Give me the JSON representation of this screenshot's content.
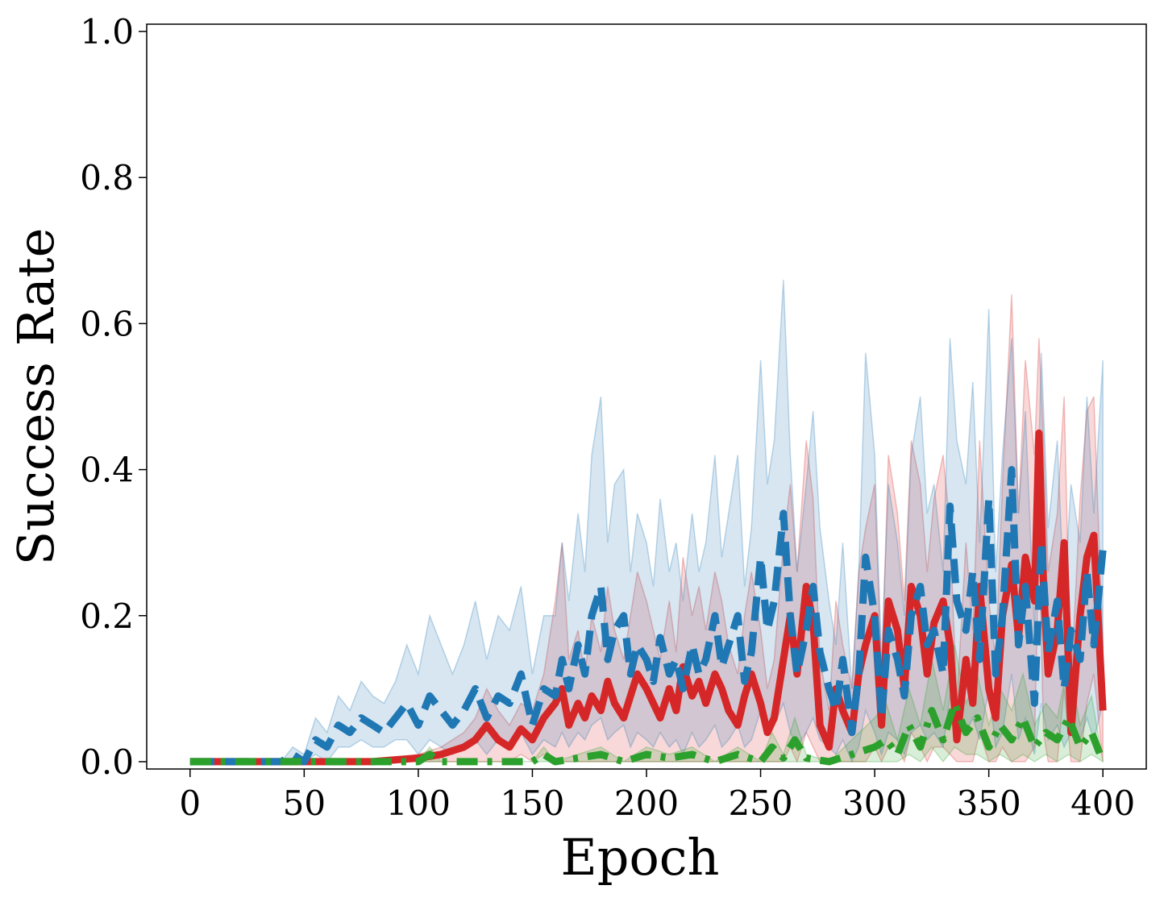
{
  "chart_data": {
    "type": "line",
    "title": "",
    "xlabel": "Epoch",
    "ylabel": "Success Rate",
    "xlim": [
      -19,
      419
    ],
    "ylim": [
      -0.01,
      1.01
    ],
    "xticks": [
      0,
      50,
      100,
      150,
      200,
      250,
      300,
      350,
      400
    ],
    "yticks": [
      0.0,
      0.2,
      0.4,
      0.6,
      0.8,
      1.0
    ],
    "xtick_labels": [
      "0",
      "50",
      "100",
      "150",
      "200",
      "250",
      "300",
      "350",
      "400"
    ],
    "ytick_labels": [
      "0.0",
      "0.2",
      "0.4",
      "0.6",
      "0.8",
      "1.0"
    ],
    "grid": false,
    "legend": "none",
    "series": [
      {
        "color": "#d62728",
        "line_style": "solid",
        "x": [
          0,
          20,
          40,
          60,
          80,
          100,
          110,
          120,
          125,
          130,
          135,
          140,
          145,
          150,
          155,
          160,
          163,
          166,
          170,
          173,
          176,
          180,
          183,
          186,
          190,
          193,
          196,
          200,
          203,
          206,
          210,
          213,
          216,
          220,
          223,
          226,
          230,
          233,
          236,
          240,
          243,
          246,
          250,
          253,
          256,
          260,
          263,
          266,
          270,
          273,
          276,
          280,
          283,
          286,
          290,
          293,
          296,
          300,
          303,
          306,
          310,
          313,
          316,
          320,
          323,
          326,
          330,
          333,
          336,
          340,
          343,
          346,
          350,
          353,
          356,
          360,
          363,
          366,
          370,
          372,
          374,
          376,
          380,
          383,
          386,
          390,
          393,
          396,
          400
        ],
        "mean": [
          0,
          0,
          0,
          0,
          0,
          0.005,
          0.01,
          0.02,
          0.03,
          0.05,
          0.03,
          0.02,
          0.045,
          0.03,
          0.06,
          0.08,
          0.1,
          0.05,
          0.08,
          0.06,
          0.09,
          0.07,
          0.11,
          0.08,
          0.06,
          0.09,
          0.12,
          0.1,
          0.08,
          0.06,
          0.1,
          0.07,
          0.13,
          0.09,
          0.11,
          0.08,
          0.12,
          0.1,
          0.07,
          0.05,
          0.09,
          0.12,
          0.08,
          0.04,
          0.06,
          0.14,
          0.2,
          0.12,
          0.24,
          0.19,
          0.05,
          0.02,
          0.1,
          0.07,
          0.04,
          0.12,
          0.16,
          0.2,
          0.05,
          0.22,
          0.18,
          0.1,
          0.24,
          0.2,
          0.12,
          0.19,
          0.22,
          0.16,
          0.03,
          0.14,
          0.08,
          0.24,
          0.1,
          0.06,
          0.2,
          0.27,
          0.17,
          0.28,
          0.22,
          0.45,
          0.24,
          0.12,
          0.18,
          0.3,
          0.04,
          0.2,
          0.28,
          0.31,
          0.07
        ],
        "upper": [
          0,
          0,
          0,
          0,
          0,
          0.01,
          0.02,
          0.04,
          0.06,
          0.1,
          0.07,
          0.05,
          0.08,
          0.07,
          0.12,
          0.22,
          0.3,
          0.14,
          0.18,
          0.12,
          0.2,
          0.15,
          0.24,
          0.18,
          0.14,
          0.2,
          0.26,
          0.22,
          0.18,
          0.14,
          0.22,
          0.15,
          0.28,
          0.2,
          0.24,
          0.18,
          0.26,
          0.22,
          0.16,
          0.12,
          0.2,
          0.26,
          0.18,
          0.1,
          0.14,
          0.3,
          0.38,
          0.26,
          0.44,
          0.36,
          0.14,
          0.07,
          0.22,
          0.16,
          0.1,
          0.26,
          0.32,
          0.38,
          0.12,
          0.42,
          0.34,
          0.22,
          0.44,
          0.38,
          0.26,
          0.36,
          0.42,
          0.32,
          0.08,
          0.3,
          0.18,
          0.44,
          0.22,
          0.14,
          0.38,
          0.64,
          0.34,
          0.55,
          0.42,
          0.58,
          0.44,
          0.26,
          0.34,
          0.5,
          0.1,
          0.36,
          0.48,
          0.5,
          0.16
        ],
        "lower": [
          0,
          0,
          0,
          0,
          0,
          0,
          0,
          0,
          0,
          0,
          0,
          0,
          0.01,
          0,
          0.01,
          0,
          0,
          0,
          0,
          0,
          0,
          0,
          0,
          0,
          0,
          0,
          0,
          0,
          0,
          0,
          0,
          0,
          0,
          0,
          0,
          0,
          0,
          0,
          0,
          0,
          0,
          0,
          0,
          0,
          0,
          0,
          0.02,
          0,
          0.04,
          0.02,
          0,
          0,
          0,
          0,
          0,
          0,
          0,
          0.02,
          0,
          0.02,
          0.02,
          0,
          0.04,
          0.02,
          0,
          0.02,
          0.02,
          0.01,
          0,
          0,
          0,
          0.04,
          0,
          0,
          0.02,
          0,
          0,
          0,
          0.02,
          0.3,
          0.04,
          0,
          0,
          0.1,
          0,
          0,
          0.08,
          0.12,
          0
        ]
      },
      {
        "color": "#1f77b4",
        "line_style": "dashed",
        "x": [
          0,
          20,
          40,
          45,
          50,
          55,
          60,
          65,
          70,
          75,
          80,
          85,
          90,
          95,
          100,
          105,
          110,
          115,
          120,
          125,
          130,
          135,
          140,
          145,
          150,
          155,
          160,
          163,
          166,
          170,
          173,
          176,
          180,
          183,
          186,
          190,
          193,
          196,
          200,
          203,
          206,
          210,
          213,
          216,
          220,
          223,
          226,
          230,
          233,
          236,
          240,
          243,
          246,
          250,
          253,
          256,
          260,
          263,
          266,
          270,
          273,
          276,
          280,
          283,
          286,
          290,
          293,
          296,
          300,
          303,
          306,
          310,
          313,
          316,
          320,
          323,
          326,
          330,
          333,
          336,
          340,
          343,
          346,
          350,
          353,
          356,
          360,
          363,
          366,
          370,
          373,
          376,
          380,
          383,
          386,
          390,
          393,
          396,
          400
        ],
        "mean": [
          0,
          0,
          0,
          0.01,
          0,
          0.03,
          0.02,
          0.05,
          0.04,
          0.06,
          0.05,
          0.04,
          0.06,
          0.08,
          0.05,
          0.09,
          0.07,
          0.05,
          0.07,
          0.1,
          0.06,
          0.09,
          0.08,
          0.12,
          0.05,
          0.1,
          0.09,
          0.14,
          0.1,
          0.16,
          0.12,
          0.2,
          0.24,
          0.14,
          0.18,
          0.2,
          0.12,
          0.16,
          0.14,
          0.11,
          0.17,
          0.12,
          0.14,
          0.1,
          0.16,
          0.12,
          0.14,
          0.2,
          0.13,
          0.16,
          0.2,
          0.11,
          0.15,
          0.28,
          0.18,
          0.22,
          0.34,
          0.2,
          0.12,
          0.18,
          0.24,
          0.15,
          0.1,
          0.07,
          0.14,
          0.04,
          0.12,
          0.28,
          0.2,
          0.06,
          0.18,
          0.14,
          0.09,
          0.2,
          0.24,
          0.16,
          0.18,
          0.12,
          0.35,
          0.22,
          0.18,
          0.26,
          0.14,
          0.36,
          0.12,
          0.2,
          0.4,
          0.16,
          0.24,
          0.08,
          0.3,
          0.15,
          0.22,
          0.1,
          0.18,
          0.14,
          0.26,
          0.16,
          0.29
        ],
        "upper": [
          0,
          0,
          0,
          0.02,
          0.01,
          0.06,
          0.04,
          0.09,
          0.07,
          0.11,
          0.09,
          0.08,
          0.11,
          0.16,
          0.12,
          0.2,
          0.16,
          0.12,
          0.16,
          0.22,
          0.14,
          0.2,
          0.18,
          0.24,
          0.12,
          0.2,
          0.2,
          0.3,
          0.22,
          0.34,
          0.26,
          0.42,
          0.5,
          0.3,
          0.38,
          0.4,
          0.26,
          0.34,
          0.3,
          0.24,
          0.36,
          0.26,
          0.3,
          0.22,
          0.34,
          0.26,
          0.3,
          0.42,
          0.28,
          0.34,
          0.42,
          0.24,
          0.32,
          0.55,
          0.38,
          0.44,
          0.66,
          0.42,
          0.26,
          0.38,
          0.48,
          0.32,
          0.22,
          0.16,
          0.3,
          0.1,
          0.26,
          0.56,
          0.42,
          0.14,
          0.38,
          0.3,
          0.2,
          0.42,
          0.5,
          0.34,
          0.38,
          0.26,
          0.58,
          0.44,
          0.38,
          0.52,
          0.3,
          0.62,
          0.26,
          0.42,
          0.58,
          0.34,
          0.48,
          0.18,
          0.56,
          0.32,
          0.44,
          0.22,
          0.38,
          0.3,
          0.5,
          0.34,
          0.55
        ],
        "lower": [
          0,
          0,
          0,
          0,
          0,
          0.01,
          0,
          0.02,
          0.02,
          0.03,
          0.02,
          0.02,
          0.03,
          0.03,
          0.01,
          0.03,
          0.02,
          0.01,
          0.02,
          0.03,
          0.01,
          0.03,
          0.02,
          0.04,
          0.01,
          0.03,
          0.02,
          0.04,
          0.02,
          0.04,
          0.03,
          0.05,
          0.06,
          0.03,
          0.04,
          0.05,
          0.02,
          0.04,
          0.03,
          0.02,
          0.04,
          0.02,
          0.03,
          0.01,
          0.04,
          0.02,
          0.03,
          0.05,
          0.02,
          0.03,
          0.05,
          0.02,
          0.03,
          0.07,
          0.04,
          0.05,
          0.08,
          0.04,
          0.02,
          0.04,
          0.06,
          0.03,
          0.02,
          0.01,
          0.03,
          0,
          0.02,
          0.07,
          0.04,
          0.01,
          0.04,
          0.03,
          0.01,
          0.04,
          0.05,
          0.03,
          0.04,
          0.02,
          0.09,
          0.05,
          0.04,
          0.06,
          0.03,
          0.1,
          0.02,
          0.04,
          0.12,
          0.03,
          0.06,
          0.01,
          0.08,
          0.03,
          0.05,
          0.02,
          0.04,
          0.03,
          0.06,
          0.03,
          0.08
        ]
      },
      {
        "color": "#2ca02c",
        "line_style": "dashdot",
        "x": [
          0,
          50,
          100,
          105,
          110,
          150,
          155,
          160,
          170,
          180,
          190,
          200,
          210,
          220,
          230,
          240,
          250,
          255,
          260,
          265,
          270,
          280,
          290,
          300,
          305,
          310,
          315,
          320,
          325,
          330,
          335,
          340,
          345,
          350,
          355,
          360,
          365,
          370,
          375,
          380,
          385,
          390,
          395,
          400
        ],
        "mean": [
          0,
          0,
          0,
          0.01,
          0,
          0,
          0.01,
          0,
          0.005,
          0.01,
          0,
          0.01,
          0.005,
          0.01,
          0,
          0.01,
          0,
          0.02,
          0.005,
          0.03,
          0.005,
          0,
          0.01,
          0.02,
          0.03,
          0.01,
          0.05,
          0.02,
          0.07,
          0.03,
          0.08,
          0.04,
          0.06,
          0.02,
          0.05,
          0.03,
          0.06,
          0.02,
          0.04,
          0.03,
          0.06,
          0.02,
          0.04,
          0
        ],
        "upper": [
          0,
          0,
          0,
          0.02,
          0,
          0,
          0.02,
          0,
          0.01,
          0.02,
          0,
          0.02,
          0.01,
          0.02,
          0,
          0.02,
          0,
          0.04,
          0.01,
          0.06,
          0.01,
          0,
          0.03,
          0.06,
          0.08,
          0.03,
          0.1,
          0.05,
          0.14,
          0.07,
          0.16,
          0.08,
          0.12,
          0.05,
          0.1,
          0.07,
          0.12,
          0.05,
          0.08,
          0.06,
          0.14,
          0.05,
          0.09,
          0
        ],
        "lower": [
          0,
          0,
          0,
          0,
          0,
          0,
          0,
          0,
          0,
          0,
          0,
          0,
          0,
          0,
          0,
          0,
          0,
          0,
          0,
          0,
          0,
          0,
          0,
          0,
          0,
          0,
          0.01,
          0,
          0.02,
          0,
          0.02,
          0.01,
          0.01,
          0,
          0.01,
          0,
          0.01,
          0,
          0.01,
          0,
          0.01,
          0,
          0.01,
          0
        ]
      }
    ]
  }
}
